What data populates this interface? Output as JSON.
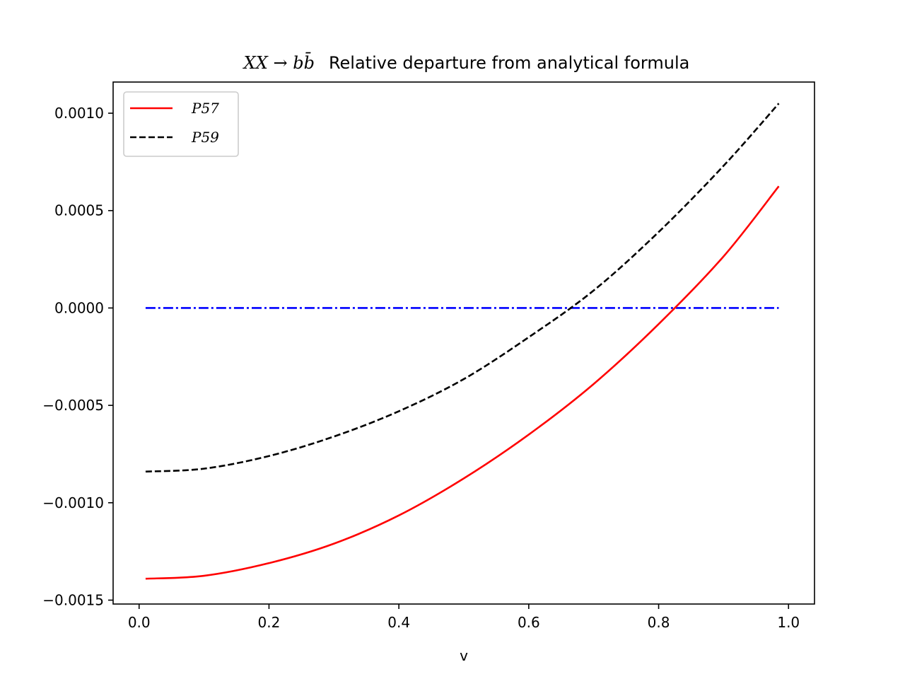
{
  "chart_data": {
    "type": "line",
    "title_math": "XX → bb̄",
    "title": "Relative departure from analytical formula",
    "xlabel": "v",
    "ylabel": "",
    "xlim": [
      -0.04,
      1.04
    ],
    "ylim": [
      -0.00152,
      0.00116
    ],
    "x_ticks": [
      0.0,
      0.2,
      0.4,
      0.6,
      0.8,
      1.0
    ],
    "x_tick_labels": [
      "0.0",
      "0.2",
      "0.4",
      "0.6",
      "0.8",
      "1.0"
    ],
    "y_ticks": [
      0.001,
      0.0005,
      0.0,
      -0.0005,
      -0.001,
      -0.0015
    ],
    "y_tick_labels": [
      "0.0010",
      "0.0005",
      "0.0000",
      "−0.0005",
      "−0.0010",
      "−0.0015"
    ],
    "grid": false,
    "legend_position": "upper-left",
    "x": [
      0.01,
      0.1,
      0.2,
      0.3,
      0.4,
      0.5,
      0.6,
      0.7,
      0.8,
      0.9,
      0.985
    ],
    "series": [
      {
        "name": "P57",
        "style": "solid",
        "color": "#ff0000",
        "in_legend": true,
        "values": [
          -0.00139,
          -0.001375,
          -0.00131,
          -0.00121,
          -0.001065,
          -0.000875,
          -0.00065,
          -0.00039,
          -8.25e-05,
          0.000265,
          0.000625
        ]
      },
      {
        "name": "P59",
        "style": "dashed",
        "color": "#000000",
        "in_legend": true,
        "values": [
          -0.00084,
          -0.000825,
          -0.00076,
          -0.00066,
          -0.00053,
          -0.000365,
          -0.00015,
          9e-05,
          0.00039,
          0.00073,
          0.00105
        ]
      },
      {
        "name": "",
        "style": "dashdot",
        "color": "#0000ff",
        "in_legend": false,
        "values": [
          0.0,
          0.0,
          0.0,
          0.0,
          0.0,
          0.0,
          0.0,
          0.0,
          0.0,
          0.0,
          0.0
        ]
      }
    ]
  }
}
